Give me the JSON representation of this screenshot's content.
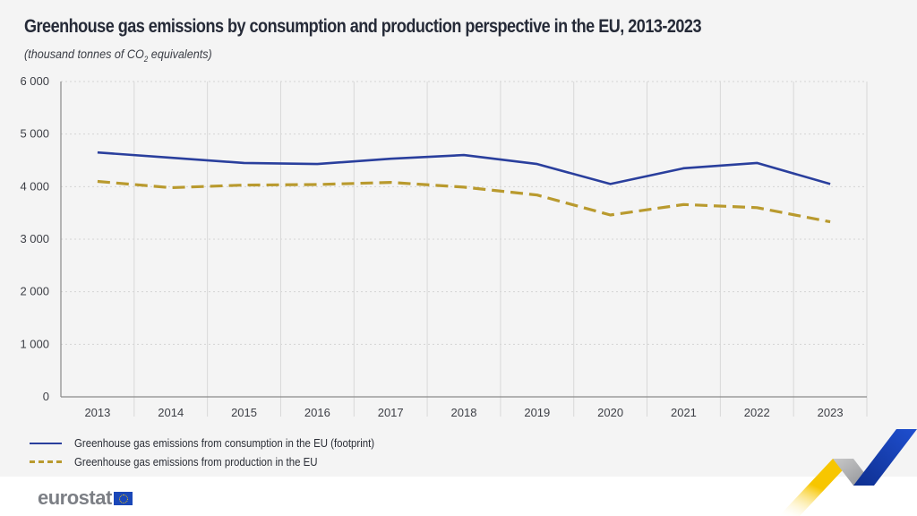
{
  "header": {
    "title": "Greenhouse gas emissions by consumption and production perspective in the EU, 2013-2023",
    "subtitle_prefix": "(thousand tonnes of CO",
    "subtitle_sub": "2",
    "subtitle_suffix": " equivalents)"
  },
  "chart_data": {
    "type": "line",
    "title": "Greenhouse gas emissions by consumption and production perspective in the EU, 2013-2023",
    "subtitle": "(thousand tonnes of CO2 equivalents)",
    "xlabel": "",
    "ylabel": "",
    "categories": [
      "2013",
      "2014",
      "2015",
      "2016",
      "2017",
      "2018",
      "2019",
      "2020",
      "2021",
      "2022",
      "2023"
    ],
    "ylim": [
      0,
      6000
    ],
    "yticks": [
      0,
      1000,
      2000,
      3000,
      4000,
      5000,
      6000
    ],
    "ytick_labels": [
      "0",
      "1 000",
      "2 000",
      "3 000",
      "4 000",
      "5 000",
      "6 000"
    ],
    "grid": true,
    "legend_position": "bottom-left",
    "series": [
      {
        "name": "Greenhouse gas emissions from consumption in the EU (footprint)",
        "style": "solid",
        "color": "#2a3f9d",
        "values": [
          4650,
          4550,
          4450,
          4430,
          4530,
          4600,
          4430,
          4050,
          4350,
          4450,
          4050
        ]
      },
      {
        "name": "Greenhouse gas emissions from production in the EU",
        "style": "dashed",
        "color": "#b99a2e",
        "values": [
          4100,
          3980,
          4030,
          4040,
          4080,
          3990,
          3840,
          3460,
          3660,
          3600,
          3330
        ]
      }
    ]
  },
  "branding": {
    "logo_text": "eurostat",
    "flag_color": "#1a47b8",
    "accent_yellow": "#f7c600",
    "accent_blue": "#1a47b8"
  }
}
